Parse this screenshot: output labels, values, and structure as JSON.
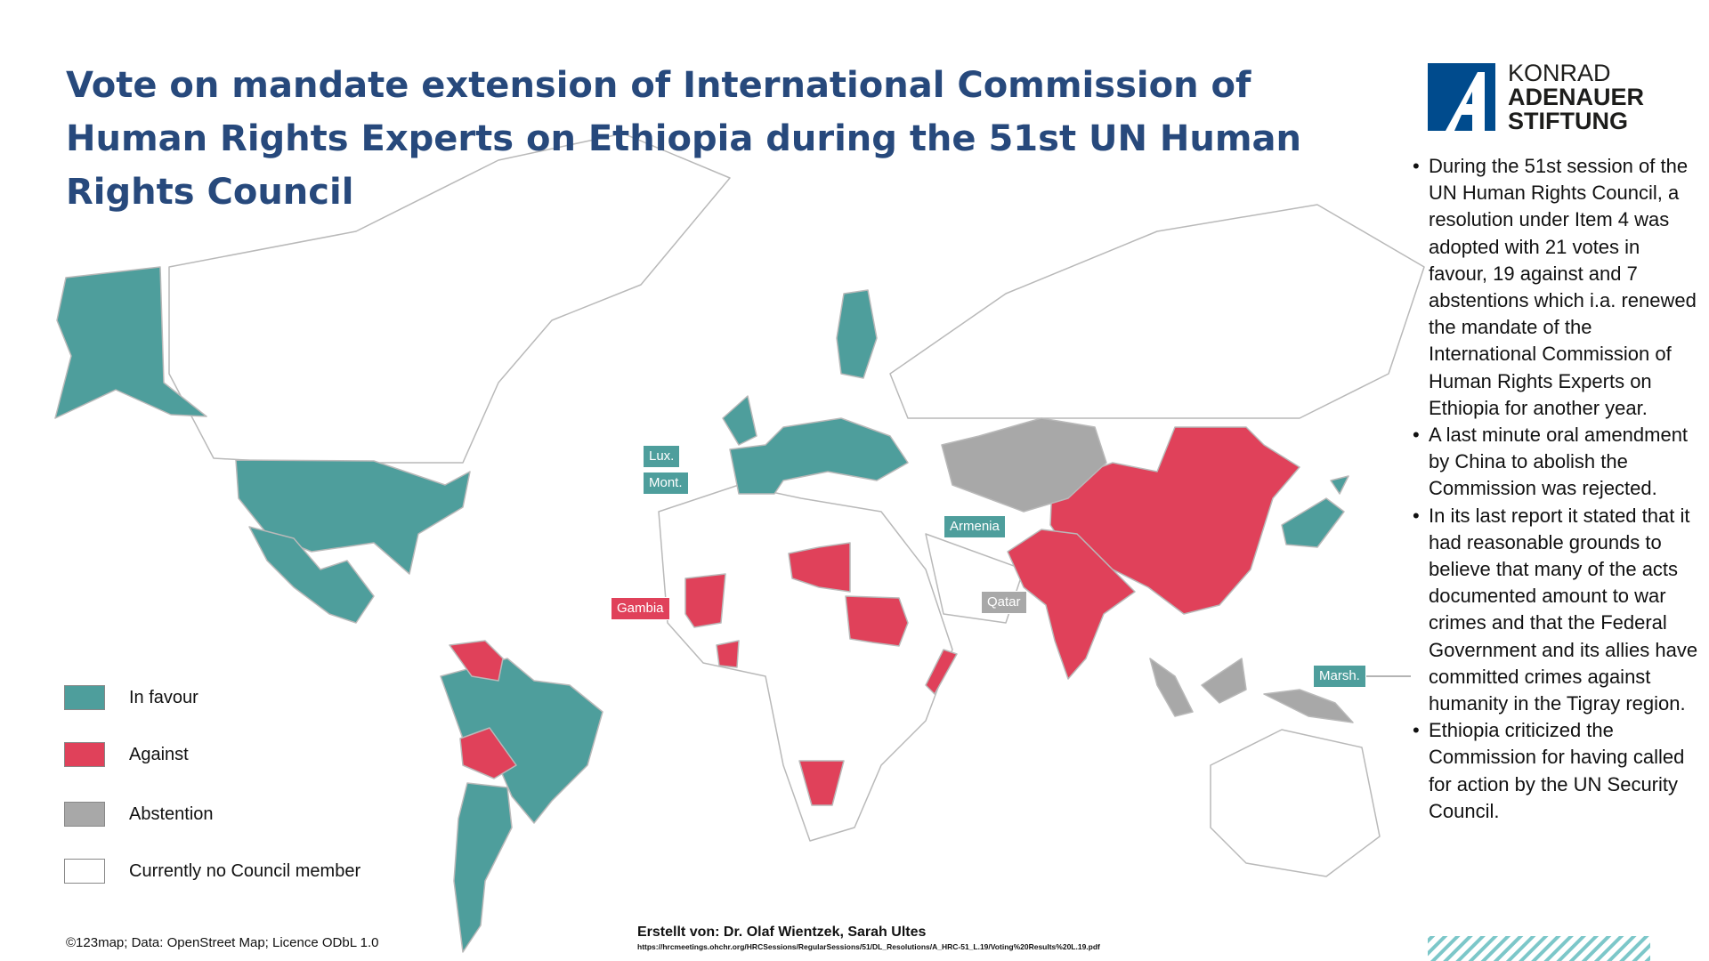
{
  "title": "Vote on mandate extension of International Commission of Human Rights Experts on Ethiopia during the 51st UN Human Rights Council",
  "logo": {
    "line1": "KONRAD",
    "line2": "ADENAUER",
    "line3": "STIFTUNG"
  },
  "legend": [
    {
      "label": "In favour",
      "color": "#4e9e9c"
    },
    {
      "label": "Against",
      "color": "#e0415a"
    },
    {
      "label": "Abstention",
      "color": "#a8a8a8"
    },
    {
      "label": "Currently no Council member",
      "color": "#ffffff"
    }
  ],
  "map_labels": [
    {
      "label": "Lux.",
      "color": "#4e9e9c"
    },
    {
      "label": "Mont.",
      "color": "#4e9e9c"
    },
    {
      "label": "Armenia",
      "color": "#4e9e9c"
    },
    {
      "label": "Gambia",
      "color": "#e0415a"
    },
    {
      "label": "Qatar",
      "color": "#a8a8a8"
    },
    {
      "label": "Marsh.",
      "color": "#4e9e9c"
    }
  ],
  "bullets": [
    "During the 51st session of the UN Human Rights Council, a resolution under Item 4 was adopted with 21 votes in favour, 19 against and 7 abstentions which i.a. renewed the mandate of the International Commission of Human Rights Experts on Ethiopia for another year.",
    "A last minute oral amendment by China to abolish the Commission was rejected.",
    "In its last report it stated that it had reasonable grounds to believe that many of the acts documented amount to war crimes and that the Federal Government and its allies have committed crimes against humanity in the Tigray region.",
    "Ethiopia criticized the Commission for having called for action by the UN Security Council."
  ],
  "credits": {
    "map": "©123map; Data: OpenStreet Map; Licence ODbL 1.0",
    "authors": "Erstellt von: Dr. Olaf Wientzek, Sarah Ultes",
    "source": "https://hrcmeetings.ohchr.org/HRCSessions/RegularSessions/51/DL_Resolutions/A_HRC-51_L.19/Voting%20Results%20L.19.pdf"
  }
}
